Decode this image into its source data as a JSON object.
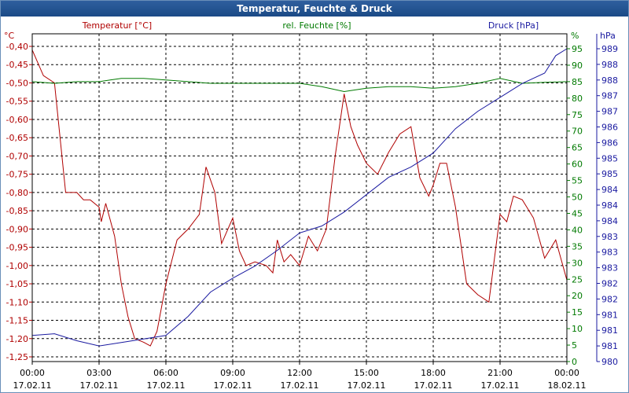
{
  "window": {
    "title": "Temperatur, Feuchte & Druck"
  },
  "chart_data": {
    "type": "line",
    "title": "Temperatur, Feuchte & Druck",
    "grid": true,
    "x_axis": {
      "range": [
        "17.02.11 00:00",
        "18.02.11 00:00"
      ],
      "ticks": [
        {
          "time": "00:00",
          "date": "17.02.11"
        },
        {
          "time": "03:00",
          "date": "17.02.11"
        },
        {
          "time": "06:00",
          "date": "17.02.11"
        },
        {
          "time": "09:00",
          "date": "17.02.11"
        },
        {
          "time": "12:00",
          "date": "17.02.11"
        },
        {
          "time": "15:00",
          "date": "17.02.11"
        },
        {
          "time": "18:00",
          "date": "17.02.11"
        },
        {
          "time": "21:00",
          "date": "17.02.11"
        },
        {
          "time": "00:00",
          "date": "18.02.11"
        }
      ]
    },
    "y_axes": {
      "temperature": {
        "label": "Temperatur [°C]",
        "unit": "°C",
        "color": "#b00000",
        "range": [
          -1.25,
          -0.4
        ],
        "ticks": [
          "-0,40",
          "-0,45",
          "-0,50",
          "-0,55",
          "-0,60",
          "-0,65",
          "-0,70",
          "-0,75",
          "-0,80",
          "-0,85",
          "-0,90",
          "-0,95",
          "-1,00",
          "-1,05",
          "-1,10",
          "-1,15",
          "-1,20",
          "-1,25"
        ]
      },
      "humidity": {
        "label": "rel. Feuchte [%]",
        "unit": "%",
        "color": "#007a00",
        "range": [
          0,
          95
        ],
        "ticks": [
          "0",
          "5",
          "10",
          "15",
          "20",
          "25",
          "30",
          "35",
          "40",
          "45",
          "50",
          "55",
          "60",
          "65",
          "70",
          "75",
          "80",
          "85",
          "90",
          "95"
        ]
      },
      "pressure": {
        "label": "Druck [hPa]",
        "unit": "hPa",
        "color": "#1a1aa0",
        "range": [
          980,
          989
        ],
        "ticks": [
          "980",
          "981",
          "981",
          "981",
          "982",
          "982",
          "983",
          "983",
          "983",
          "984",
          "984",
          "984",
          "985",
          "985",
          "986",
          "986",
          "987",
          "987",
          "988",
          "988",
          "989"
        ]
      }
    },
    "series": [
      {
        "name": "Temperatur [°C]",
        "axis": "temperature",
        "color": "#b00000",
        "x_hours": [
          0,
          0.5,
          1,
          1.5,
          2,
          2.3,
          2.6,
          3,
          3.1,
          3.3,
          3.7,
          4,
          4.3,
          4.6,
          5,
          5.3,
          5.6,
          6,
          6.5,
          7,
          7.5,
          7.8,
          8.2,
          8.5,
          9,
          9.3,
          9.6,
          10,
          10.5,
          10.8,
          11,
          11.3,
          11.6,
          12,
          12.4,
          12.8,
          13.2,
          13.6,
          14,
          14.3,
          14.6,
          15,
          15.5,
          16,
          16.5,
          17,
          17.4,
          17.8,
          18,
          18.3,
          18.6,
          19,
          19.5,
          20,
          20.5,
          21,
          21.3,
          21.6,
          22,
          22.5,
          23,
          23.5,
          24
        ],
        "values": [
          -0.41,
          -0.48,
          -0.5,
          -0.8,
          -0.8,
          -0.82,
          -0.82,
          -0.84,
          -0.88,
          -0.83,
          -0.92,
          -1.05,
          -1.14,
          -1.2,
          -1.21,
          -1.22,
          -1.18,
          -1.05,
          -0.93,
          -0.9,
          -0.86,
          -0.73,
          -0.8,
          -0.94,
          -0.87,
          -0.96,
          -1.0,
          -0.99,
          -1.0,
          -1.02,
          -0.93,
          -0.99,
          -0.97,
          -1.0,
          -0.92,
          -0.96,
          -0.9,
          -0.7,
          -0.53,
          -0.62,
          -0.67,
          -0.72,
          -0.75,
          -0.69,
          -0.64,
          -0.62,
          -0.76,
          -0.81,
          -0.78,
          -0.72,
          -0.72,
          -0.84,
          -1.05,
          -1.08,
          -1.1,
          -0.86,
          -0.88,
          -0.81,
          -0.82,
          -0.87,
          -0.98,
          -0.93,
          -1.04
        ]
      },
      {
        "name": "rel. Feuchte [%]",
        "axis": "humidity",
        "color": "#007a00",
        "x_hours": [
          0,
          1,
          2,
          3,
          3.5,
          4,
          5,
          6,
          7,
          8,
          9,
          10,
          11,
          12,
          13,
          14,
          15,
          16,
          17,
          18,
          19,
          20,
          21,
          22,
          23,
          24
        ],
        "values": [
          85,
          84.5,
          85,
          85,
          85.5,
          86,
          86,
          85.5,
          85,
          84.5,
          84.5,
          84.5,
          84.5,
          84.5,
          83.5,
          82,
          83,
          83.5,
          83.5,
          83,
          83.5,
          84.5,
          86,
          84.5,
          84.8,
          85
        ]
      },
      {
        "name": "Druck [hPa]",
        "axis": "pressure",
        "color": "#1a1aa0",
        "x_hours": [
          0,
          1,
          2,
          3,
          4,
          5,
          6,
          7,
          8,
          9,
          10,
          11,
          12,
          13,
          14,
          15,
          16,
          17,
          18,
          19,
          20,
          21,
          22,
          23,
          23.5,
          24
        ],
        "values": [
          980.75,
          980.8,
          980.6,
          980.45,
          980.55,
          980.65,
          980.75,
          981.3,
          982.0,
          982.4,
          982.75,
          983.2,
          983.7,
          983.9,
          984.3,
          984.8,
          985.3,
          985.6,
          986.0,
          986.7,
          987.2,
          987.6,
          988.0,
          988.3,
          988.8,
          989.0
        ]
      }
    ]
  }
}
